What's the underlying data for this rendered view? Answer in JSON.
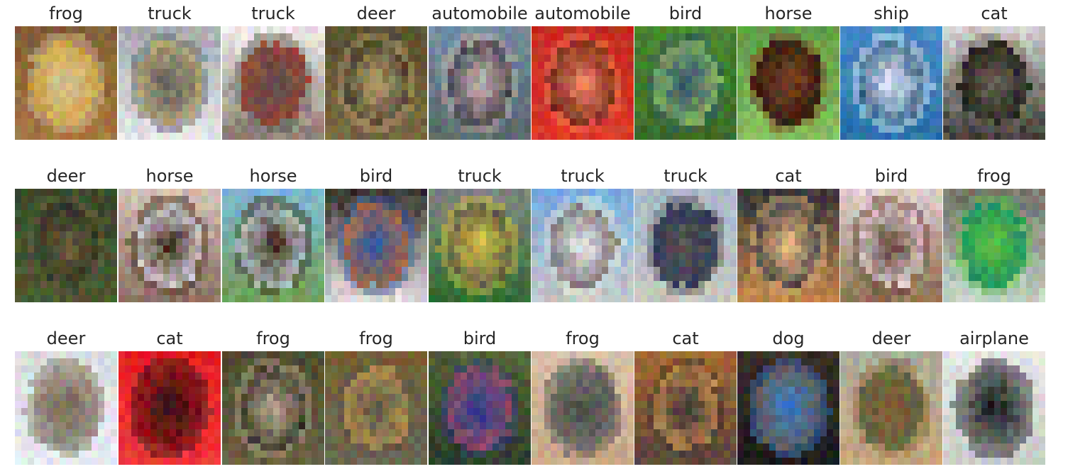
{
  "figure": {
    "rows": [
      {
        "cells": [
          {
            "label": "frog",
            "colors": {
              "bg": "#7a5a38",
              "mid": "#a8783e",
              "fg": "#d8c49e",
              "accent": "#c8a030"
            }
          },
          {
            "label": "truck",
            "colors": {
              "bg": "#a0a4a8",
              "mid": "#e8eaec",
              "fg": "#5a5c60",
              "accent": "#c8b878"
            }
          },
          {
            "label": "truck",
            "colors": {
              "bg": "#f2f2f2",
              "mid": "#8a7a70",
              "fg": "#5a5048",
              "accent": "#a04838"
            }
          },
          {
            "label": "deer",
            "colors": {
              "bg": "#5a5030",
              "mid": "#7a6a40",
              "fg": "#b8a070",
              "accent": "#3a3220"
            }
          },
          {
            "label": "automobile",
            "colors": {
              "bg": "#7890a8",
              "mid": "#5a6a6a",
              "fg": "#c0b0b0",
              "accent": "#3a3a40"
            }
          },
          {
            "label": "automobile",
            "colors": {
              "bg": "#c02a1e",
              "mid": "#e03a2a",
              "fg": "#f08060",
              "accent": "#6a2010"
            }
          },
          {
            "label": "bird",
            "colors": {
              "bg": "#4a8a30",
              "mid": "#3a6a28",
              "fg": "#34506a",
              "accent": "#90c060"
            }
          },
          {
            "label": "horse",
            "colors": {
              "bg": "#5a9a40",
              "mid": "#8ac060",
              "fg": "#7a4020",
              "accent": "#2a1a10"
            }
          },
          {
            "label": "ship",
            "colors": {
              "bg": "#4a90c8",
              "mid": "#2a70a8",
              "fg": "#e8f0f8",
              "accent": "#1a4a78"
            }
          },
          {
            "label": "cat",
            "colors": {
              "bg": "#e0e0e0",
              "mid": "#3a3830",
              "fg": "#6a6050",
              "accent": "#1a1a18"
            }
          }
        ]
      },
      {
        "cells": [
          {
            "label": "deer",
            "colors": {
              "bg": "#3a4a2a",
              "mid": "#4a5a34",
              "fg": "#6a5a3a",
              "accent": "#2a3420"
            }
          },
          {
            "label": "horse",
            "colors": {
              "bg": "#d8c8b8",
              "mid": "#8a7060",
              "fg": "#3a2418",
              "accent": "#e8e8f0"
            }
          },
          {
            "label": "horse",
            "colors": {
              "bg": "#80b8e0",
              "mid": "#70a050",
              "fg": "#3a2818",
              "accent": "#c8d8e0"
            }
          },
          {
            "label": "bird",
            "colors": {
              "bg": "#2a2420",
              "mid": "#e8e0e0",
              "fg": "#2a5aa8",
              "accent": "#c06a30"
            }
          },
          {
            "label": "truck",
            "colors": {
              "bg": "#8a8a88",
              "mid": "#2a6a2a",
              "fg": "#d8c840",
              "accent": "#4a4a48"
            }
          },
          {
            "label": "truck",
            "colors": {
              "bg": "#70a8e0",
              "mid": "#c8c8c8",
              "fg": "#e8e8e8",
              "accent": "#6a6868"
            }
          },
          {
            "label": "truck",
            "colors": {
              "bg": "#a8b8c8",
              "mid": "#c8c8c0",
              "fg": "#5a5450",
              "accent": "#2a3a5a"
            }
          },
          {
            "label": "cat",
            "colors": {
              "bg": "#2a3038",
              "mid": "#c88a4a",
              "fg": "#e8b880",
              "accent": "#3a3a40"
            }
          },
          {
            "label": "bird",
            "colors": {
              "bg": "#e8d8d8",
              "mid": "#8a6a4a",
              "fg": "#5a4030",
              "accent": "#f0e0e0"
            }
          },
          {
            "label": "frog",
            "colors": {
              "bg": "#6a6a60",
              "mid": "#c8d8c8",
              "fg": "#5ac040",
              "accent": "#1a8a6a"
            }
          }
        ]
      },
      {
        "cells": [
          {
            "label": "deer",
            "colors": {
              "bg": "#d8dce0",
              "mid": "#e8ecf0",
              "fg": "#7a6a58",
              "accent": "#a8a098"
            }
          },
          {
            "label": "cat",
            "colors": {
              "bg": "#e01a20",
              "mid": "#f03a3a",
              "fg": "#2a1a18",
              "accent": "#b01018"
            }
          },
          {
            "label": "frog",
            "colors": {
              "bg": "#4a4a30",
              "mid": "#6a6040",
              "fg": "#b8a890",
              "accent": "#2a2818"
            }
          },
          {
            "label": "frog",
            "colors": {
              "bg": "#7a6030",
              "mid": "#6a6a58",
              "fg": "#5a5448",
              "accent": "#c09a50"
            }
          },
          {
            "label": "bird",
            "colors": {
              "bg": "#5a6a3a",
              "mid": "#2a3a2a",
              "fg": "#2a3a8a",
              "accent": "#a05060"
            }
          },
          {
            "label": "frog",
            "colors": {
              "bg": "#d8c0a8",
              "mid": "#c8a888",
              "fg": "#4a4a48",
              "accent": "#7a7870"
            }
          },
          {
            "label": "cat",
            "colors": {
              "bg": "#a86a30",
              "mid": "#5a4a40",
              "fg": "#3a3430",
              "accent": "#c89050"
            }
          },
          {
            "label": "dog",
            "colors": {
              "bg": "#3a3028",
              "mid": "#1a1a1a",
              "fg": "#3a7ac8",
              "accent": "#6a5a48"
            }
          },
          {
            "label": "deer",
            "colors": {
              "bg": "#a8b0a0",
              "mid": "#c8a878",
              "fg": "#8a5a30",
              "accent": "#5a6a4a"
            }
          },
          {
            "label": "airplane",
            "colors": {
              "bg": "#e8e8e8",
              "mid": "#c8c8c8",
              "fg": "#1a1a1a",
              "accent": "#8a8a8a"
            }
          }
        ]
      }
    ]
  }
}
